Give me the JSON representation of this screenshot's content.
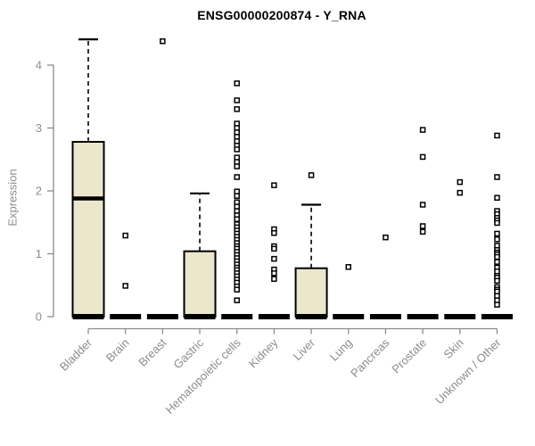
{
  "title": "ENSG00000200874 - Y_RNA",
  "chart_data": {
    "type": "boxplot",
    "title": "ENSG00000200874 - Y_RNA",
    "xlabel": "",
    "ylabel": "Expression",
    "ylim": [
      0,
      4.45
    ],
    "yticks": [
      0,
      1,
      2,
      3,
      4
    ],
    "grid": false,
    "legend": "none",
    "categories": [
      "Bladder",
      "Brain",
      "Breast",
      "Gastric",
      "Hematopoietic cells",
      "Kidney",
      "Liver",
      "Lung",
      "Pancreas",
      "Prostate",
      "Skin",
      "Unknown / Other"
    ],
    "boxes": [
      {
        "category": "Bladder",
        "q1": 0,
        "median": 1.88,
        "q3": 2.78,
        "whisker_low": 0,
        "whisker_high": 4.41,
        "outliers": []
      },
      {
        "category": "Brain",
        "q1": 0,
        "median": 0,
        "q3": 0,
        "whisker_low": 0,
        "whisker_high": 0,
        "outliers": [
          1.29,
          0.49
        ]
      },
      {
        "category": "Breast",
        "q1": 0,
        "median": 0,
        "q3": 0,
        "whisker_low": 0,
        "whisker_high": 0,
        "outliers": [
          4.38
        ]
      },
      {
        "category": "Gastric",
        "q1": 0,
        "median": 0,
        "q3": 1.04,
        "whisker_low": 0,
        "whisker_high": 1.96,
        "outliers": []
      },
      {
        "category": "Hematopoietic cells",
        "q1": 0,
        "median": 0,
        "q3": 0,
        "whisker_low": 0,
        "whisker_high": 0,
        "outliers": [
          3.71,
          3.44,
          3.3,
          3.07,
          3.0,
          2.93,
          2.86,
          2.79,
          2.72,
          2.66,
          2.53,
          2.46,
          2.39,
          2.22,
          1.99,
          1.92,
          1.82,
          1.75,
          1.68,
          1.61,
          1.55,
          1.47,
          1.42,
          1.37,
          1.32,
          1.27,
          1.22,
          1.17,
          1.12,
          1.08,
          1.03,
          0.98,
          0.93,
          0.88,
          0.83,
          0.78,
          0.74,
          0.69,
          0.64,
          0.59,
          0.54,
          0.48,
          0.43,
          0.26
        ]
      },
      {
        "category": "Kidney",
        "q1": 0,
        "median": 0,
        "q3": 0,
        "whisker_low": 0,
        "whisker_high": 0,
        "outliers": [
          2.09,
          1.39,
          1.33,
          1.12,
          1.08,
          0.92,
          0.75,
          0.69,
          0.6
        ]
      },
      {
        "category": "Liver",
        "q1": 0,
        "median": 0,
        "q3": 0.77,
        "whisker_low": 0,
        "whisker_high": 1.78,
        "outliers": [
          2.25
        ]
      },
      {
        "category": "Lung",
        "q1": 0,
        "median": 0,
        "q3": 0,
        "whisker_low": 0,
        "whisker_high": 0,
        "outliers": [
          0.79
        ]
      },
      {
        "category": "Pancreas",
        "q1": 0,
        "median": 0,
        "q3": 0,
        "whisker_low": 0,
        "whisker_high": 0,
        "outliers": [
          1.26
        ]
      },
      {
        "category": "Prostate",
        "q1": 0,
        "median": 0,
        "q3": 0,
        "whisker_low": 0,
        "whisker_high": 0,
        "outliers": [
          2.97,
          2.54,
          1.78,
          1.44,
          1.35
        ]
      },
      {
        "category": "Skin",
        "q1": 0,
        "median": 0,
        "q3": 0,
        "whisker_low": 0,
        "whisker_high": 0,
        "outliers": [
          2.14,
          1.97
        ]
      },
      {
        "category": "Unknown / Other",
        "q1": 0,
        "median": 0,
        "q3": 0,
        "whisker_low": 0,
        "whisker_high": 0,
        "outliers": [
          2.88,
          2.22,
          1.89,
          1.68,
          1.63,
          1.57,
          1.53,
          1.49,
          1.32,
          1.23,
          1.13,
          1.06,
          1.02,
          0.99,
          0.95,
          0.87,
          0.78,
          0.72,
          0.65,
          0.62,
          0.57,
          0.47,
          0.43,
          0.4,
          0.33,
          0.26,
          0.19
        ]
      }
    ],
    "colors": {
      "background": "#ffffff",
      "box_fill": "#ece6cd",
      "box_border": "#000000",
      "median": "#000000",
      "whisker": "#000000",
      "outlier_border": "#000000",
      "axis": "#8c8c8c",
      "tick_label": "#8c8c8c",
      "title": "#000000"
    }
  }
}
